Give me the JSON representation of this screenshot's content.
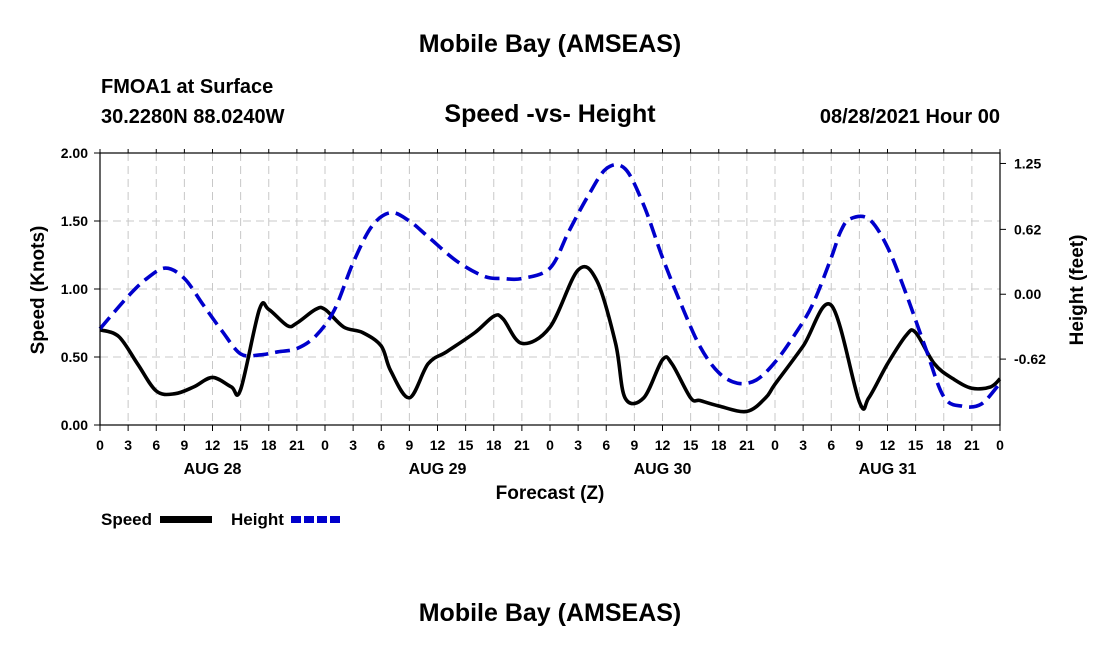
{
  "header": {
    "title": "Mobile Bay (AMSEAS)",
    "station": "FMOA1 at Surface",
    "coords": "30.2280N  88.0240W",
    "subtitle": "Speed -vs- Height",
    "runtime": "08/28/2021 Hour 00"
  },
  "footer": {
    "title": "Mobile Bay (AMSEAS)"
  },
  "legend": {
    "speed_label": "Speed",
    "height_label": "Height"
  },
  "colors": {
    "speed": "#000000",
    "height": "#0000cc",
    "grid": "#c8c8c8"
  },
  "chart_data": {
    "type": "line",
    "title": "Speed -vs- Height",
    "xlabel": "Forecast (Z)",
    "ylabel": "Speed (Knots)",
    "ylabel_right": "Height (feet)",
    "x_range": [
      0,
      96
    ],
    "ylim": [
      0,
      2.0
    ],
    "ylim_right": [
      -1.25,
      1.35
    ],
    "y_ticks": [
      "0.00",
      "0.50",
      "1.00",
      "1.50",
      "2.00"
    ],
    "y_right_ticks": [
      "-0.62",
      "0.00",
      "0.62",
      "1.25"
    ],
    "x_tick_labels": [
      "0",
      "3",
      "6",
      "9",
      "12",
      "15",
      "18",
      "21",
      "0",
      "3",
      "6",
      "9",
      "12",
      "15",
      "18",
      "21",
      "0",
      "3",
      "6",
      "9",
      "12",
      "15",
      "18",
      "21",
      "0",
      "3",
      "6",
      "9",
      "12",
      "15",
      "18",
      "21",
      "0"
    ],
    "day_labels": [
      "AUG 28",
      "AUG 29",
      "AUG 30",
      "AUG 31"
    ],
    "grid": true,
    "series": [
      {
        "name": "Speed",
        "axis": "left",
        "style": "solid",
        "x": [
          0,
          2,
          4,
          6,
          8,
          10,
          12,
          14,
          15,
          17,
          18,
          20,
          21,
          23,
          24,
          26,
          28,
          30,
          31,
          33,
          35,
          37,
          40,
          42,
          43,
          45,
          48,
          51,
          53,
          55,
          56,
          58,
          60,
          61,
          63,
          64,
          66,
          69,
          71,
          72,
          75,
          78,
          81,
          82,
          84,
          86,
          87,
          89,
          91,
          93,
          95,
          96
        ],
        "values": [
          0.7,
          0.65,
          0.45,
          0.25,
          0.23,
          0.28,
          0.35,
          0.28,
          0.26,
          0.85,
          0.85,
          0.73,
          0.75,
          0.85,
          0.85,
          0.72,
          0.68,
          0.58,
          0.4,
          0.2,
          0.45,
          0.54,
          0.68,
          0.8,
          0.78,
          0.6,
          0.72,
          1.14,
          1.06,
          0.6,
          0.2,
          0.2,
          0.48,
          0.45,
          0.2,
          0.18,
          0.14,
          0.1,
          0.2,
          0.3,
          0.58,
          0.88,
          0.17,
          0.2,
          0.45,
          0.66,
          0.68,
          0.45,
          0.34,
          0.27,
          0.28,
          0.34
        ]
      },
      {
        "name": "Height",
        "axis": "right",
        "style": "dashed",
        "x": [
          0,
          3,
          5,
          7,
          9,
          11,
          13,
          15,
          17,
          19,
          21,
          23,
          25,
          27,
          29,
          31,
          33,
          35,
          38,
          41,
          43,
          45,
          48,
          50,
          52,
          54,
          56,
          58,
          60,
          62,
          64,
          66,
          68,
          70,
          72,
          74,
          76,
          78,
          79,
          80,
          82,
          84,
          86,
          88,
          90,
          92,
          94,
          96
        ],
        "values": [
          -0.33,
          -0.02,
          0.15,
          0.25,
          0.15,
          -0.1,
          -0.35,
          -0.57,
          -0.58,
          -0.55,
          -0.52,
          -0.4,
          -0.15,
          0.3,
          0.65,
          0.78,
          0.7,
          0.55,
          0.32,
          0.17,
          0.15,
          0.15,
          0.25,
          0.6,
          0.93,
          1.2,
          1.2,
          0.85,
          0.35,
          -0.1,
          -0.5,
          -0.75,
          -0.85,
          -0.82,
          -0.65,
          -0.4,
          -0.1,
          0.35,
          0.6,
          0.72,
          0.72,
          0.45,
          0.0,
          -0.5,
          -0.98,
          -1.07,
          -1.05,
          -0.85
        ]
      }
    ]
  }
}
